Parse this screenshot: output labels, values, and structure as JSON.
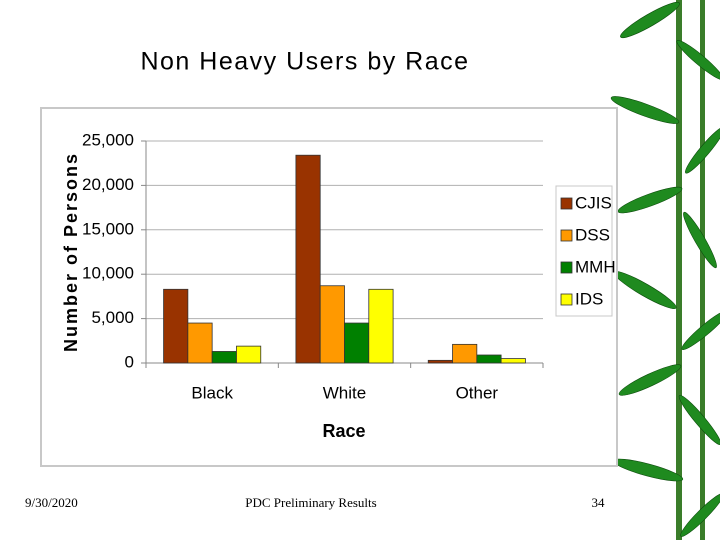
{
  "chart_data": {
    "type": "bar",
    "title": "Non Heavy Users by Race",
    "x_label": "Race",
    "y_label": "Number of Persons",
    "categories": [
      "Black",
      "White",
      "Other"
    ],
    "series": [
      {
        "name": "CJIS",
        "color": "#993300",
        "values": [
          8300,
          23400,
          300
        ]
      },
      {
        "name": "DSS",
        "color": "#ff9900",
        "values": [
          4500,
          8700,
          2100
        ]
      },
      {
        "name": "MMH",
        "color": "#008000",
        "values": [
          1300,
          4500,
          900
        ]
      },
      {
        "name": "IDS",
        "color": "#ffff00",
        "values": [
          1900,
          8300,
          500
        ]
      }
    ],
    "ylim": [
      0,
      25000
    ],
    "yticks": [
      0,
      {
        "value": 5000,
        "label": "5,000"
      },
      {
        "value": 10000,
        "label": "10,000"
      },
      {
        "value": 15000,
        "label": "15,000"
      },
      {
        "value": 20000,
        "label": "20,000"
      },
      {
        "value": 25000,
        "label": "25,000"
      }
    ],
    "grid": true,
    "legend": "right"
  },
  "footer": {
    "date": "9/30/2020",
    "center": "PDC Preliminary Results",
    "page": "34"
  }
}
